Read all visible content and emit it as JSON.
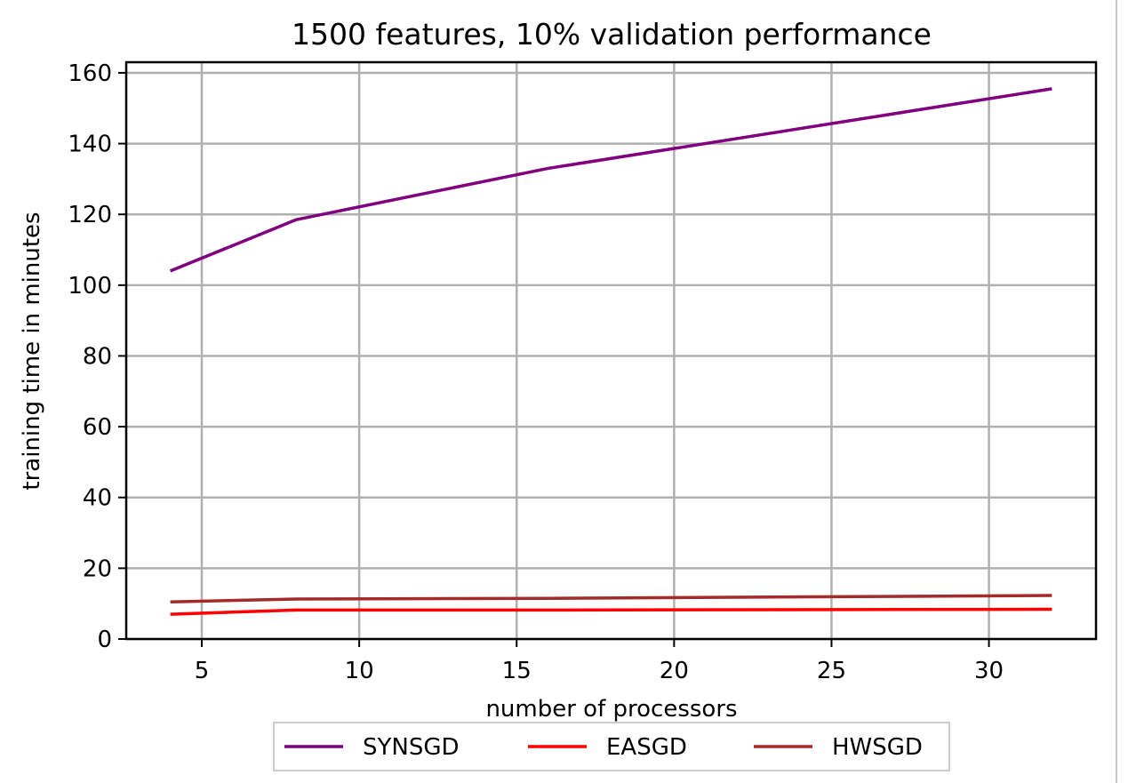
{
  "chart_data": {
    "type": "line",
    "title": "1500 features, 10% validation performance",
    "xlabel": "number of processors",
    "ylabel": "training time in minutes",
    "x": [
      4,
      8,
      16,
      32
    ],
    "xlim": [
      2.6,
      33.4
    ],
    "ylim": [
      0,
      163
    ],
    "xticks": [
      5,
      10,
      15,
      20,
      25,
      30
    ],
    "yticks": [
      0,
      20,
      40,
      60,
      80,
      100,
      120,
      140,
      160
    ],
    "grid": true,
    "legend_position": "bottom-center, below axes",
    "series": [
      {
        "name": "SYNSGD",
        "color": "#800080",
        "values": [
          104,
          118.5,
          133,
          155.5
        ]
      },
      {
        "name": "EASGD",
        "color": "#ff0000",
        "values": [
          7,
          8.2,
          8.2,
          8.4
        ]
      },
      {
        "name": "HWSGD",
        "color": "#a52a2a",
        "values": [
          10.5,
          11.3,
          11.5,
          12.3
        ]
      }
    ]
  }
}
